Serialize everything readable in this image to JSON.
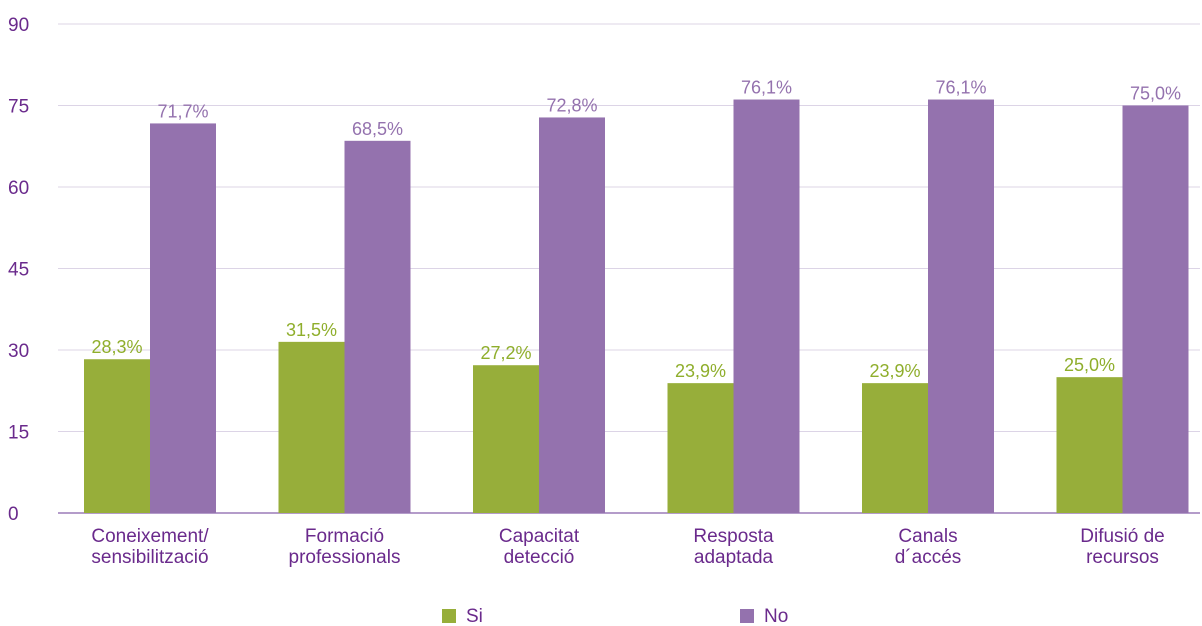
{
  "chart_data": {
    "type": "bar",
    "categories": [
      [
        "Coneixement/",
        "sensibilització"
      ],
      [
        "Formació",
        "professionals"
      ],
      [
        "Capacitat",
        "detecció"
      ],
      [
        "Resposta",
        "adaptada"
      ],
      [
        "Canals",
        "d´accés"
      ],
      [
        "Difusió de",
        "recursos"
      ]
    ],
    "series": [
      {
        "name": "Si",
        "color": "#97ae3a",
        "label_color": "#8fae2c",
        "values": [
          28.3,
          31.5,
          27.2,
          23.9,
          23.9,
          25.0
        ],
        "labels": [
          "28,3%",
          "31,5%",
          "27,2%",
          "23,9%",
          "23,9%",
          "25,0%"
        ]
      },
      {
        "name": "No",
        "color": "#9472ae",
        "label_color": "#9472ae",
        "values": [
          71.7,
          68.5,
          72.8,
          76.1,
          76.1,
          75.0
        ],
        "labels": [
          "71,7%",
          "68,5%",
          "72,8%",
          "76,1%",
          "76,1%",
          "75,0%"
        ]
      }
    ],
    "yticks": [
      "0",
      "15",
      "30",
      "45",
      "60",
      "75",
      "90"
    ],
    "ylim": [
      0,
      90
    ],
    "grid": true,
    "legend_position": "bottom"
  }
}
